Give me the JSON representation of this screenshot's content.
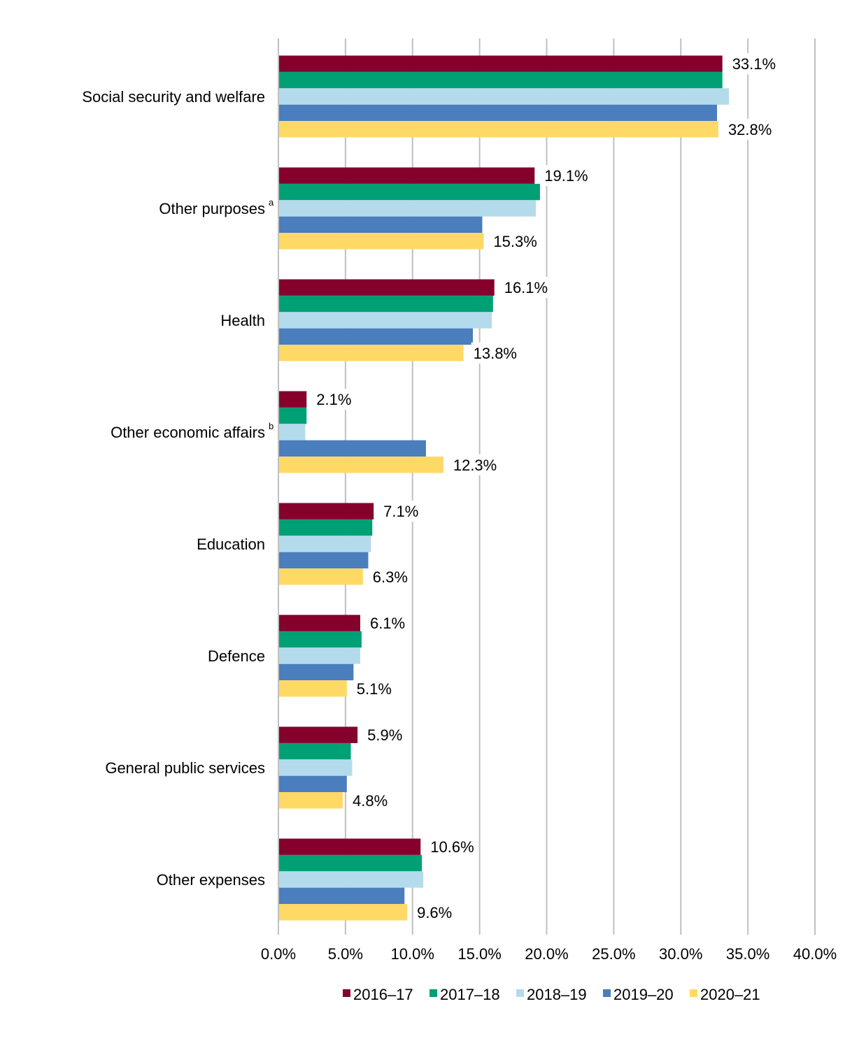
{
  "chart_data": {
    "type": "bar",
    "orientation": "horizontal",
    "categories": [
      {
        "label": "Social security and welfare",
        "superscript": ""
      },
      {
        "label": "Other purposes",
        "superscript": "a"
      },
      {
        "label": "Health",
        "superscript": ""
      },
      {
        "label": "Other economic affairs",
        "superscript": "b"
      },
      {
        "label": "Education",
        "superscript": ""
      },
      {
        "label": "Defence",
        "superscript": ""
      },
      {
        "label": "General public services",
        "superscript": ""
      },
      {
        "label": "Other expenses",
        "superscript": ""
      }
    ],
    "series": [
      {
        "name": "2016–17",
        "color": "#85002b",
        "values": [
          33.1,
          19.1,
          16.1,
          2.1,
          7.1,
          6.1,
          5.9,
          10.6
        ]
      },
      {
        "name": "2017–18",
        "color": "#00a075",
        "values": [
          33.1,
          19.5,
          16.0,
          2.1,
          7.0,
          6.2,
          5.4,
          10.7
        ]
      },
      {
        "name": "2018–19",
        "color": "#b4dbec",
        "values": [
          33.6,
          19.2,
          15.9,
          2.0,
          6.9,
          6.1,
          5.5,
          10.8
        ]
      },
      {
        "name": "2019–20",
        "color": "#4a7ebd",
        "values": [
          32.7,
          15.2,
          14.5,
          11.0,
          6.7,
          5.6,
          5.1,
          9.4
        ]
      },
      {
        "name": "2020–21",
        "color": "#ffd966",
        "values": [
          32.8,
          15.3,
          13.8,
          12.3,
          6.3,
          5.1,
          4.8,
          9.6
        ]
      }
    ],
    "data_labels": [
      {
        "category": 0,
        "series": 0,
        "text": "33.1%"
      },
      {
        "category": 0,
        "series": 4,
        "text": "32.8%"
      },
      {
        "category": 1,
        "series": 0,
        "text": "19.1%"
      },
      {
        "category": 1,
        "series": 4,
        "text": "15.3%"
      },
      {
        "category": 2,
        "series": 0,
        "text": "16.1%"
      },
      {
        "category": 2,
        "series": 4,
        "text": "13.8%"
      },
      {
        "category": 3,
        "series": 0,
        "text": "2.1%"
      },
      {
        "category": 3,
        "series": 4,
        "text": "12.3%"
      },
      {
        "category": 4,
        "series": 0,
        "text": "7.1%"
      },
      {
        "category": 4,
        "series": 4,
        "text": "6.3%"
      },
      {
        "category": 5,
        "series": 0,
        "text": "6.1%"
      },
      {
        "category": 5,
        "series": 4,
        "text": "5.1%"
      },
      {
        "category": 6,
        "series": 0,
        "text": "5.9%"
      },
      {
        "category": 6,
        "series": 4,
        "text": "4.8%"
      },
      {
        "category": 7,
        "series": 0,
        "text": "10.6%"
      },
      {
        "category": 7,
        "series": 4,
        "text": "9.6%"
      }
    ],
    "x_ticks": [
      "0.0%",
      "5.0%",
      "10.0%",
      "15.0%",
      "20.0%",
      "25.0%",
      "30.0%",
      "35.0%",
      "40.0%"
    ],
    "xlim": [
      0,
      40
    ],
    "grid": "vertical",
    "legend_position": "bottom",
    "title": "",
    "xlabel": "",
    "ylabel": ""
  }
}
